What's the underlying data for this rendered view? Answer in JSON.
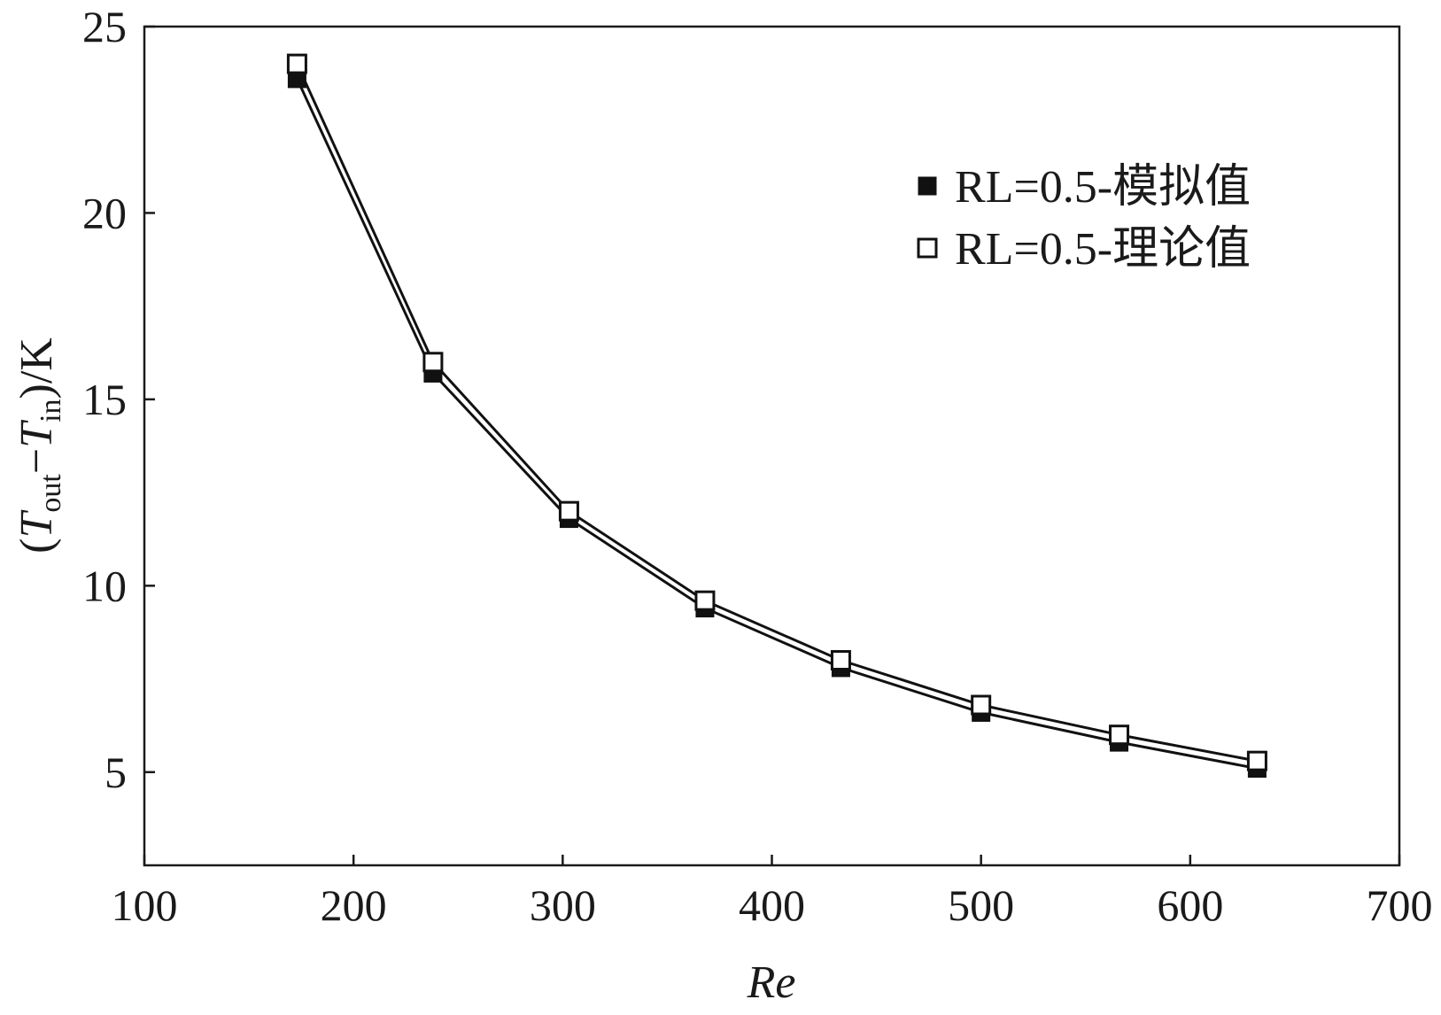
{
  "chart_data": {
    "type": "line",
    "xlabel": "Re",
    "ylabel": {
      "prefix": "(",
      "t1": "T",
      "t1_sub": "out",
      "minus": "−",
      "t2": "T",
      "t2_sub": "in",
      "suffix": ")/K"
    },
    "xlim": [
      100,
      700
    ],
    "ylim": [
      2.5,
      25
    ],
    "xticks": [
      100,
      200,
      300,
      400,
      500,
      600,
      700
    ],
    "yticks": [
      5,
      10,
      15,
      20,
      25
    ],
    "grid": false,
    "legend_position": "top-right",
    "series": [
      {
        "name": "RL=0.5-模拟值",
        "marker": "filled-square",
        "color": "#111111",
        "x": [
          173,
          238,
          303,
          368,
          433,
          500,
          566,
          632
        ],
        "y": [
          23.6,
          15.7,
          11.8,
          9.4,
          7.8,
          6.6,
          5.8,
          5.1
        ]
      },
      {
        "name": "RL=0.5-理论值",
        "marker": "open-square",
        "color": "#111111",
        "x": [
          173,
          238,
          303,
          368,
          433,
          500,
          566,
          632
        ],
        "y": [
          24.0,
          16.0,
          12.0,
          9.6,
          8.0,
          6.8,
          6.0,
          5.3
        ]
      }
    ]
  }
}
